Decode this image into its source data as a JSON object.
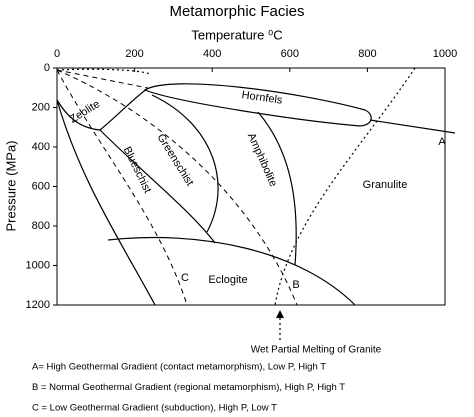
{
  "title": "Metamorphic Facies",
  "x_axis": {
    "label": "Temperature ⁰C",
    "ticks": [
      "0",
      "200",
      "400",
      "600",
      "800",
      "1000"
    ]
  },
  "y_axis": {
    "label": "Pressure (MPa)",
    "ticks": [
      "0",
      "200",
      "400",
      "600",
      "800",
      "1000",
      "1200"
    ]
  },
  "facies": {
    "zeolite": "Zeolite",
    "hornfels": "Hornfels",
    "greenschist": "Greenschist",
    "blueschist": "Blueschist",
    "amphibolite": "Amphibolite",
    "granulite": "Granulite",
    "eclogite": "Eclogite"
  },
  "gradients": {
    "a": "A",
    "b": "B",
    "c": "C"
  },
  "annotation": "Wet Partial Melting of Granite",
  "legend": [
    "A= High Geothermal Gradient (contact metamorphism), Low P, High T",
    "B = Normal Geothermal Gradient (regional metamorphism), High P, High T",
    "C = Low Geothermal Gradient (subduction), High P, Low T"
  ]
}
